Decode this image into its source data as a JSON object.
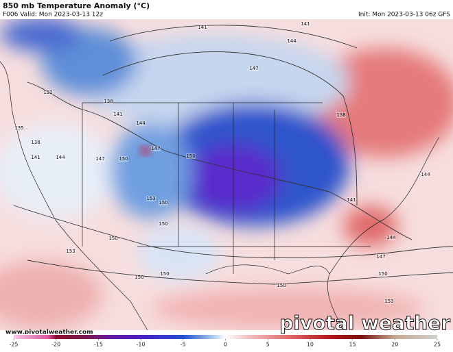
{
  "header": {
    "title": "850 mb Temperature Anomaly (°C)",
    "valid": "F006 Valid: Mon 2023-03-13 12z",
    "init": "Init: Mon 2023-03-13 06z GFS"
  },
  "contours": {
    "labels": [
      141,
      141,
      144,
      147,
      132,
      138,
      141,
      144,
      135,
      138,
      141,
      144,
      147,
      150,
      147,
      150,
      138,
      153,
      150,
      150,
      141,
      144,
      150,
      153,
      147,
      150,
      150,
      150,
      150,
      153,
      144
    ]
  },
  "footer": {
    "website": "www.pivotalweather.com",
    "brand": "pivotal weather"
  },
  "colorbar": {
    "ticks": [
      -25,
      -20,
      -15,
      -10,
      -5,
      0,
      5,
      10,
      15,
      20,
      25
    ],
    "lim": [
      -25,
      25
    ]
  }
}
